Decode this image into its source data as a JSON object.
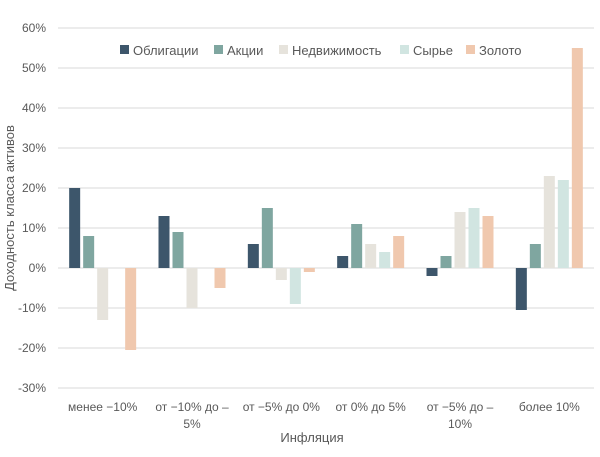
{
  "chart_data": {
    "type": "bar",
    "title": "",
    "xlabel": "Инфляция",
    "ylabel": "Доходность класса активов",
    "ylim": [
      -30,
      60
    ],
    "yticks": [
      "-30%",
      "-20%",
      "-10%",
      "0%",
      "10%",
      "20%",
      "30%",
      "40%",
      "50%",
      "60%"
    ],
    "ytick_values": [
      -30,
      -20,
      -10,
      0,
      10,
      20,
      30,
      40,
      50,
      60
    ],
    "grid": true,
    "legend_position": "top",
    "categories": [
      [
        "менее −10%"
      ],
      [
        "от −10% до –",
        "5%"
      ],
      [
        "от −5% до 0%"
      ],
      [
        "от 0% до 5%"
      ],
      [
        "от −5% до –",
        "10%"
      ],
      [
        "более 10%"
      ]
    ],
    "series": [
      {
        "name": "Облигации",
        "color": "#3d566b",
        "values": [
          20,
          13,
          6,
          3,
          -2,
          -10.5
        ]
      },
      {
        "name": "Акции",
        "color": "#7fa6a0",
        "values": [
          8,
          9,
          15,
          11,
          3,
          6
        ]
      },
      {
        "name": "Недвижимость",
        "color": "#e6e3dc",
        "values": [
          -13,
          -10,
          -3,
          6,
          14,
          23
        ]
      },
      {
        "name": "Сырье",
        "color": "#d1e5e1",
        "values": [
          0,
          0,
          -9,
          4,
          15,
          22
        ]
      },
      {
        "name": "Золото",
        "color": "#f0c8ae",
        "values": [
          -20.5,
          -5,
          -1,
          8,
          13,
          55
        ]
      }
    ]
  }
}
